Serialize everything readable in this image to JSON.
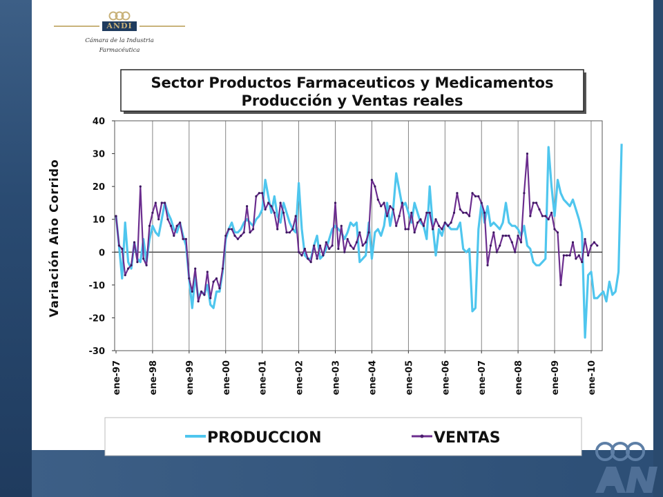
{
  "logo": {
    "brand": "ANDI",
    "subtitle_line1": "Cámara de la Industria",
    "subtitle_line2": "Farmacéutica"
  },
  "chart_data": {
    "type": "line",
    "title": "Sector Productos Farmaceuticos y Medicamentos",
    "subtitle": "Producción y Ventas reales",
    "ylabel": "Variación Año Corrido",
    "xlabel": "",
    "ylim": [
      -30,
      40
    ],
    "yticks": [
      40,
      30,
      20,
      10,
      0,
      -10,
      -20,
      -30
    ],
    "x_tick_labels": [
      "ene-97",
      "ene-98",
      "ene-99",
      "ene-00",
      "ene-01",
      "ene-02",
      "ene-03",
      "ene-04",
      "ene-05",
      "ene-06",
      "ene-07",
      "ene-08",
      "ene-09",
      "ene-10"
    ],
    "x_start": "ene-97",
    "frequency": "monthly",
    "grid": "vertical lines at each year",
    "legend_position": "bottom",
    "series": [
      {
        "name": "PRODUCCION",
        "color": "#4fc6ee",
        "marker": "none",
        "values": [
          11,
          2,
          -8,
          9,
          -3,
          -5,
          3,
          -2,
          -3,
          4,
          -3,
          4,
          8,
          6,
          5,
          10,
          15,
          12,
          10,
          7,
          6,
          9,
          5,
          2,
          -8,
          -17,
          -7,
          -14,
          -12,
          -13,
          -10,
          -16,
          -17,
          -12,
          -12,
          -6,
          4,
          7,
          9,
          6,
          6,
          7,
          9,
          10,
          9,
          8,
          10,
          11,
          13,
          22,
          17,
          12,
          17,
          11,
          9,
          15,
          12,
          9,
          7,
          6,
          21,
          7,
          -1,
          -2,
          -2,
          2,
          5,
          -2,
          -1,
          1,
          4,
          7,
          8,
          7,
          6,
          4,
          6,
          9,
          8,
          9,
          -3,
          -2,
          -1,
          9,
          -2,
          6,
          7,
          5,
          8,
          15,
          8,
          13,
          24,
          19,
          14,
          15,
          12,
          9,
          15,
          12,
          9,
          8,
          4,
          20,
          8,
          -1,
          7,
          5,
          9,
          8,
          7,
          7,
          7,
          9,
          1,
          0,
          1,
          -18,
          -17,
          7,
          15,
          9,
          14,
          8,
          9,
          8,
          7,
          9,
          15,
          9,
          8,
          8,
          7,
          5,
          8,
          2,
          1,
          -3,
          -4,
          -4,
          -3,
          -2,
          32,
          20,
          11,
          22,
          18,
          16,
          15,
          14,
          16,
          13,
          10,
          6,
          -26,
          -7,
          -6,
          -14,
          -14,
          -13,
          -12,
          -15,
          -9,
          -13,
          -12,
          -6,
          33
        ]
      },
      {
        "name": "VENTAS",
        "color": "#6b2d8e",
        "marker": "dot",
        "values": [
          11,
          2,
          1,
          -7,
          -5,
          -4,
          3,
          -3,
          20,
          -2,
          -4,
          8,
          12,
          15,
          10,
          15,
          15,
          10,
          8,
          5,
          8,
          9,
          4,
          4,
          -8,
          -12,
          -5,
          -15,
          -12,
          -13,
          -6,
          -14,
          -9,
          -8,
          -11,
          -5,
          5,
          7,
          7,
          5,
          4,
          5,
          6,
          14,
          6,
          7,
          17,
          18,
          18,
          13,
          15,
          14,
          12,
          7,
          15,
          12,
          6,
          6,
          7,
          11,
          0,
          -1,
          1,
          -2,
          -3,
          2,
          -2,
          2,
          -1,
          3,
          1,
          2,
          15,
          1,
          8,
          0,
          4,
          2,
          1,
          3,
          6,
          2,
          3,
          6,
          22,
          20,
          16,
          14,
          15,
          11,
          14,
          13,
          8,
          11,
          15,
          7,
          7,
          12,
          6,
          9,
          10,
          8,
          12,
          12,
          7,
          10,
          8,
          7,
          9,
          8,
          9,
          12,
          18,
          13,
          12,
          12,
          11,
          18,
          17,
          17,
          15,
          12,
          -4,
          2,
          6,
          0,
          2,
          5,
          5,
          5,
          3,
          0,
          5,
          3,
          18,
          30,
          11,
          15,
          15,
          13,
          11,
          11,
          10,
          12,
          7,
          6,
          -10,
          -1,
          -1,
          -1,
          3,
          -2,
          -1,
          -3,
          4,
          -1,
          2,
          3,
          2
        ]
      }
    ]
  }
}
